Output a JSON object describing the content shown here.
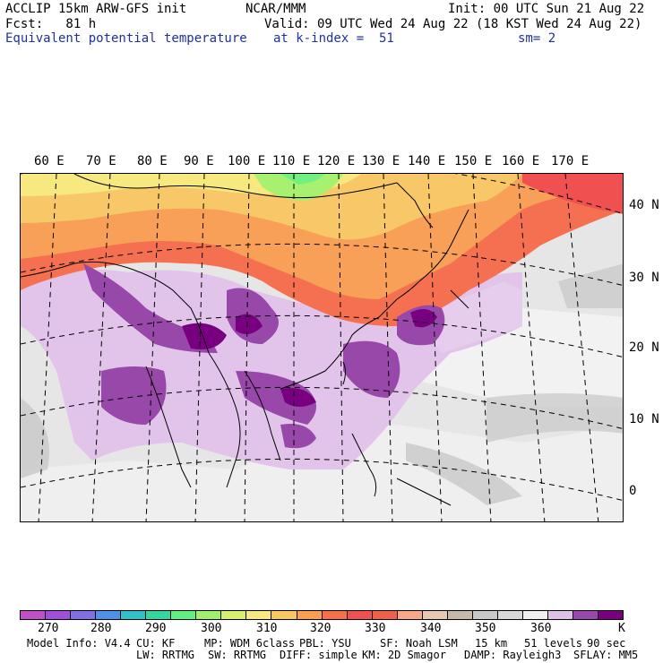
{
  "header": {
    "line1_left": "ACCLIP 15km ARW-GFS init",
    "line1_center": "NCAR/MMM",
    "line1_right": "Init: 00 UTC Sun 21 Aug 22",
    "line2_left": "Fcst:   81 h",
    "line2_right": "Valid: 09 UTC Wed 24 Aug 22 (18 KST Wed 24 Aug 22)",
    "line3_field": "Equivalent potential temperature",
    "line3_level": "at k-index =  51",
    "line3_smooth": "sm= 2"
  },
  "longitude_labels": [
    "60 E",
    "70 E",
    "80 E",
    "90 E",
    "100 E",
    "110 E",
    "120 E",
    "130 E",
    "140 E",
    "150 E",
    "160 E",
    "170 E"
  ],
  "latitude_labels": [
    "40 N",
    "30 N",
    "20 N",
    "10 N",
    "0"
  ],
  "colorbar": {
    "colors": [
      "#c050c8",
      "#a050d8",
      "#8070e0",
      "#5090e8",
      "#30c0c8",
      "#30d8a0",
      "#60f080",
      "#a0f070",
      "#d8f070",
      "#f8e880",
      "#f8c860",
      "#f8a050",
      "#f87048",
      "#f05050",
      "#f06048",
      "#f8a888",
      "#e8c8b0",
      "#c8b8a8",
      "#c8c8c8",
      "#d8d8d8",
      "#f0f0f0",
      "#e0c0e8",
      "#9848a8",
      "#780080"
    ],
    "labels": [
      "270",
      "280",
      "290",
      "300",
      "310",
      "320",
      "330",
      "340",
      "350",
      "360",
      "K"
    ]
  },
  "footer": {
    "line1": [
      "Model Info: V4.4",
      "CU: KF",
      "MP: WDM 6class",
      "PBL: YSU",
      "SF: Noah LSM",
      "15 km",
      "51 levels",
      "90 sec"
    ],
    "line2": [
      "LW: RRTMG",
      "SW: RRTMG",
      "DIFF: simple",
      "KM: 2D Smagor",
      "DAMP: Rayleigh3",
      "SFLAY: MM5"
    ]
  }
}
